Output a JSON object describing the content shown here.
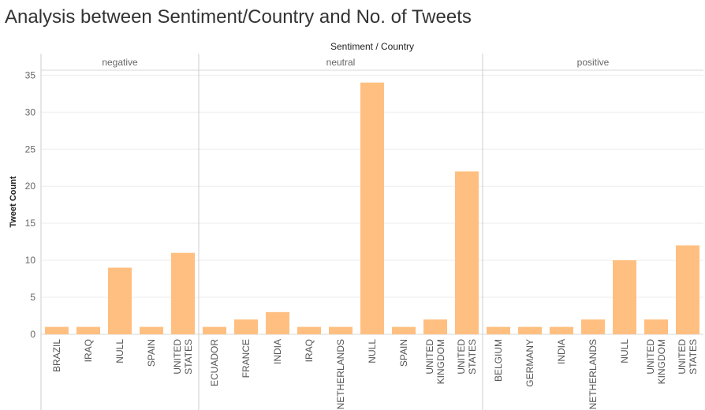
{
  "title": "Analysis between Sentiment/Country and No. of Tweets",
  "chart_data": {
    "type": "bar",
    "title": "Analysis between Sentiment/Country and No. of Tweets",
    "column_header": "Sentiment / Country",
    "ylabel": "Tweet Count",
    "ylim": [
      0,
      36
    ],
    "yticks": [
      0,
      5,
      10,
      15,
      20,
      25,
      30,
      35
    ],
    "grid": true,
    "bar_color": "#ffbf80",
    "panels": [
      {
        "label": "negative",
        "categories": [
          "BRAZIL",
          "IRAQ",
          "NULL",
          "SPAIN",
          "UNITED STATES"
        ],
        "values": [
          1,
          1,
          9,
          1,
          11
        ]
      },
      {
        "label": "neutral",
        "categories": [
          "ECUADOR",
          "FRANCE",
          "INDIA",
          "IRAQ",
          "NETHERLANDS",
          "NULL",
          "SPAIN",
          "UNITED KINGDOM",
          "UNITED STATES"
        ],
        "values": [
          1,
          2,
          3,
          1,
          1,
          34,
          1,
          2,
          22
        ]
      },
      {
        "label": "positive",
        "categories": [
          "BELGIUM",
          "GERMANY",
          "INDIA",
          "NETHERLANDS",
          "NULL",
          "UNITED KINGDOM",
          "UNITED STATES"
        ],
        "values": [
          1,
          1,
          1,
          2,
          10,
          2,
          12
        ]
      }
    ]
  }
}
